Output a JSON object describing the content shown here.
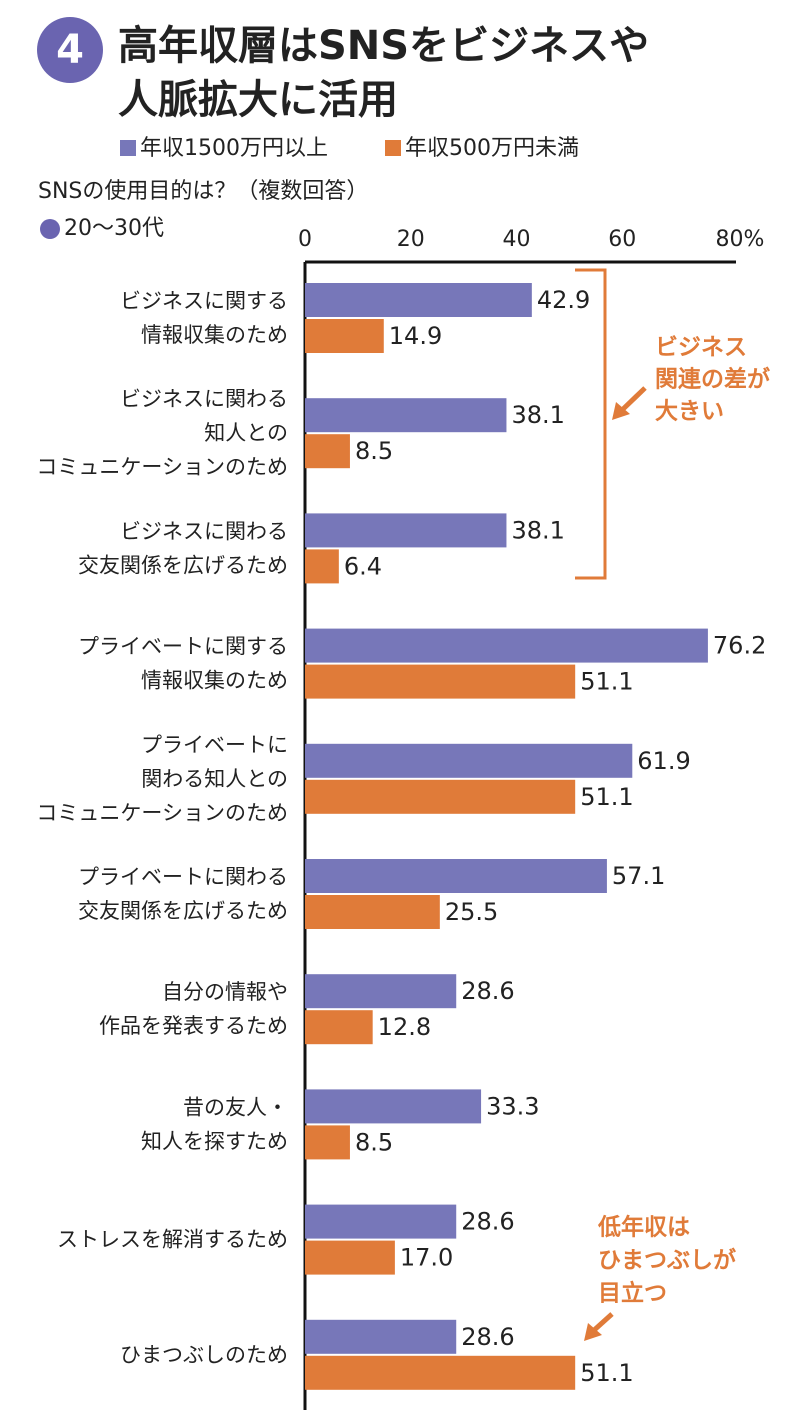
{
  "chart_data": {
    "type": "hbar",
    "badge": "4",
    "title": [
      "高年収層はSNSをビジネスや",
      "人脈拡大に活用"
    ],
    "subtitle": "SNSの使用目的は？（複数回答）",
    "note": "20〜30代",
    "categories": [
      [
        "ビジネスに関する",
        "情報収集のため"
      ],
      [
        "ビジネスに関わる",
        "知人との",
        "コミュニケーションのため"
      ],
      [
        "ビジネスに関わる",
        "交友関係を広げるため"
      ],
      [
        "プライベートに関する",
        "情報収集のため"
      ],
      [
        "プライベートに",
        "関わる知人との",
        "コミュニケーションのため"
      ],
      [
        "プライベートに関わる",
        "交友関係を広げるため"
      ],
      [
        "自分の情報や",
        "作品を発表するため"
      ],
      [
        "昔の友人・",
        "知人を探すため"
      ],
      [
        "ストレスを解消するため"
      ],
      [
        "ひまつぶしのため"
      ]
    ],
    "series": [
      {
        "name": "年収1500万円以上",
        "color": "#7777b9",
        "values": [
          42.9,
          38.1,
          38.1,
          76.2,
          61.9,
          57.1,
          28.6,
          33.3,
          28.6,
          28.6
        ],
        "value_labels": [
          "42.9",
          "38.1",
          "38.1",
          "76.2",
          "61.9",
          "57.1",
          "28.6",
          "33.3",
          "28.6",
          "28.6"
        ]
      },
      {
        "name": "年収500万円未満",
        "color": "#e07b39",
        "values": [
          14.9,
          8.5,
          6.4,
          51.1,
          51.1,
          25.5,
          12.8,
          8.5,
          17.0,
          51.1
        ],
        "value_labels": [
          "14.9",
          "8.5",
          "6.4",
          "51.1",
          "51.1",
          "25.5",
          "12.8",
          "8.5",
          "17.0",
          "51.1"
        ]
      }
    ],
    "xlim": [
      0,
      80
    ],
    "xticks": [
      0,
      20,
      40,
      60,
      {
        "value": 80,
        "label": "80%"
      }
    ],
    "annotations": [
      [
        "ビジネス",
        "関連の差が",
        "大きい"
      ],
      [
        "低年収は",
        "ひまつぶしが",
        "目立つ"
      ]
    ]
  }
}
